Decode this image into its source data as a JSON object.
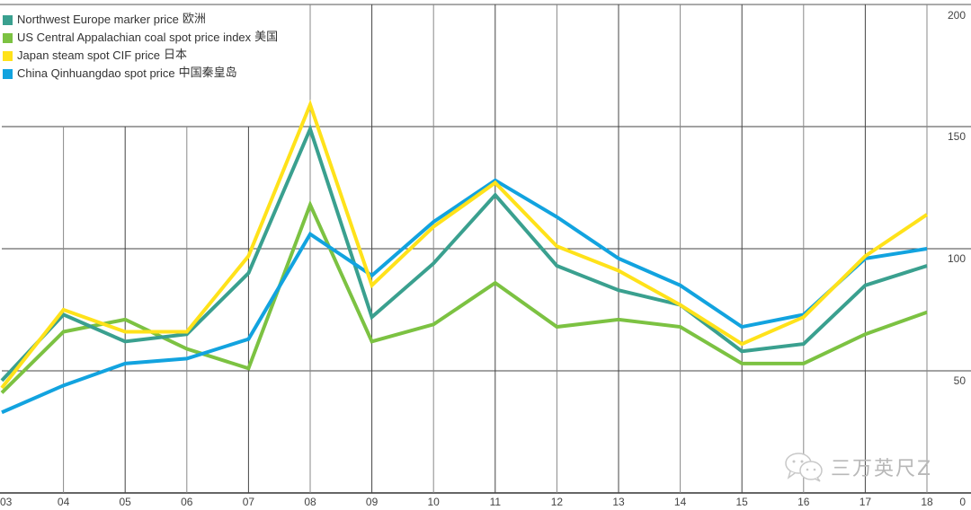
{
  "chart_data": {
    "type": "line",
    "title": "",
    "xlabel": "",
    "ylabel": "",
    "ylim": [
      0,
      200
    ],
    "yticks": [
      0,
      50,
      100,
      150,
      200
    ],
    "grid": true,
    "legend_position": "top-left",
    "x": [
      "03",
      "04",
      "05",
      "06",
      "07",
      "08",
      "09",
      "10",
      "11",
      "12",
      "13",
      "14",
      "15",
      "16",
      "17",
      "18"
    ],
    "series": [
      {
        "name": "Northwest Europe marker price",
        "name_cn": "欧洲",
        "color": "#3aa08f",
        "values": [
          46,
          73,
          62,
          65,
          90,
          149,
          72,
          94,
          122,
          93,
          83,
          77,
          58,
          61,
          85,
          93
        ]
      },
      {
        "name": "US Central Appalachian coal spot price index",
        "name_cn": "美国",
        "color": "#7cc242",
        "values": [
          41,
          66,
          71,
          59,
          51,
          118,
          62,
          69,
          86,
          68,
          71,
          68,
          53,
          53,
          65,
          74
        ]
      },
      {
        "name": "Japan steam spot CIF price",
        "name_cn": "日本",
        "color": "#ffe21a",
        "values": [
          43,
          75,
          66,
          66,
          97,
          159,
          85,
          109,
          127,
          101,
          91,
          77,
          61,
          72,
          97,
          114
        ]
      },
      {
        "name": "China Qinhuangdao spot price",
        "name_cn": "中国秦皇岛",
        "color": "#12a3df",
        "values": [
          33,
          44,
          53,
          55,
          63,
          106,
          89,
          111,
          128,
          113,
          96,
          85,
          68,
          73,
          96,
          100
        ]
      }
    ]
  },
  "axis": {
    "y_labels": [
      "200",
      "150",
      "100",
      "50",
      "0"
    ],
    "x_labels": [
      "03",
      "04",
      "05",
      "06",
      "07",
      "08",
      "09",
      "10",
      "11",
      "12",
      "13",
      "14",
      "15",
      "16",
      "17",
      "18"
    ]
  },
  "watermark": {
    "text": "三万英尺Z",
    "icon": "wechat-icon"
  }
}
